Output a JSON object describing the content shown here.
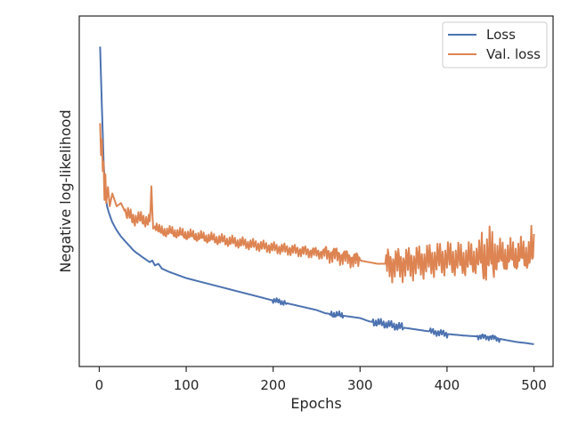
{
  "chart_data": {
    "type": "line",
    "title": "",
    "xlabel": "Epochs",
    "ylabel": "Negative log-likelihood",
    "xlim": [
      -23,
      522
    ],
    "ylim": [
      0.0,
      1.0
    ],
    "y_ticks_shown": false,
    "x_ticks": [
      0,
      100,
      200,
      300,
      400,
      500
    ],
    "x_tick_labels": [
      "0",
      "100",
      "200",
      "300",
      "400",
      "500"
    ],
    "legend_position": "top-right",
    "grid": false,
    "series": [
      {
        "name": "Loss",
        "color": "#4c72b0",
        "x": [
          1,
          3,
          5,
          7,
          9,
          11,
          15,
          20,
          25,
          30,
          35,
          40,
          50,
          58,
          61,
          64,
          68,
          72,
          80,
          100,
          150,
          200,
          210,
          250,
          260,
          300,
          310,
          320,
          350,
          380,
          400,
          420,
          450,
          460,
          480,
          490,
          500
        ],
        "y": [
          0.96,
          0.77,
          0.6,
          0.5,
          0.46,
          0.44,
          0.41,
          0.385,
          0.365,
          0.35,
          0.335,
          0.32,
          0.3,
          0.285,
          0.29,
          0.275,
          0.28,
          0.265,
          0.255,
          0.235,
          0.2,
          0.165,
          0.16,
          0.135,
          0.125,
          0.11,
          0.1,
          0.095,
          0.08,
          0.068,
          0.06,
          0.055,
          0.05,
          0.045,
          0.035,
          0.032,
          0.028
        ],
        "oscillation_ranges": [
          [
            200,
            215,
            0.01
          ],
          [
            265,
            280,
            0.012
          ],
          [
            315,
            350,
            0.015
          ],
          [
            380,
            400,
            0.012
          ],
          [
            435,
            460,
            0.01
          ]
        ]
      },
      {
        "name": "Val. loss",
        "color": "#dd8452",
        "x": [
          1,
          2,
          3,
          4,
          5,
          6,
          7,
          8,
          10,
          12,
          15,
          20,
          25,
          30,
          35,
          40,
          50,
          58,
          60,
          62,
          65,
          70,
          80,
          100,
          150,
          200,
          250,
          270,
          300,
          320,
          350,
          380,
          400,
          420,
          450,
          470,
          500
        ],
        "y": [
          0.72,
          0.62,
          0.67,
          0.57,
          0.6,
          0.48,
          0.56,
          0.47,
          0.52,
          0.46,
          0.5,
          0.46,
          0.47,
          0.44,
          0.43,
          0.42,
          0.42,
          0.41,
          0.5,
          0.39,
          0.4,
          0.38,
          0.38,
          0.37,
          0.35,
          0.33,
          0.315,
          0.31,
          0.29,
          0.28,
          0.28,
          0.29,
          0.295,
          0.29,
          0.3,
          0.3,
          0.31
        ],
        "oscillation_ranges": [
          [
            30,
            60,
            0.025
          ],
          [
            65,
            300,
            0.02
          ],
          [
            260,
            300,
            0.03
          ],
          [
            330,
            500,
            0.06
          ],
          [
            440,
            455,
            0.1
          ],
          [
            495,
            500,
            0.09
          ]
        ]
      }
    ]
  }
}
